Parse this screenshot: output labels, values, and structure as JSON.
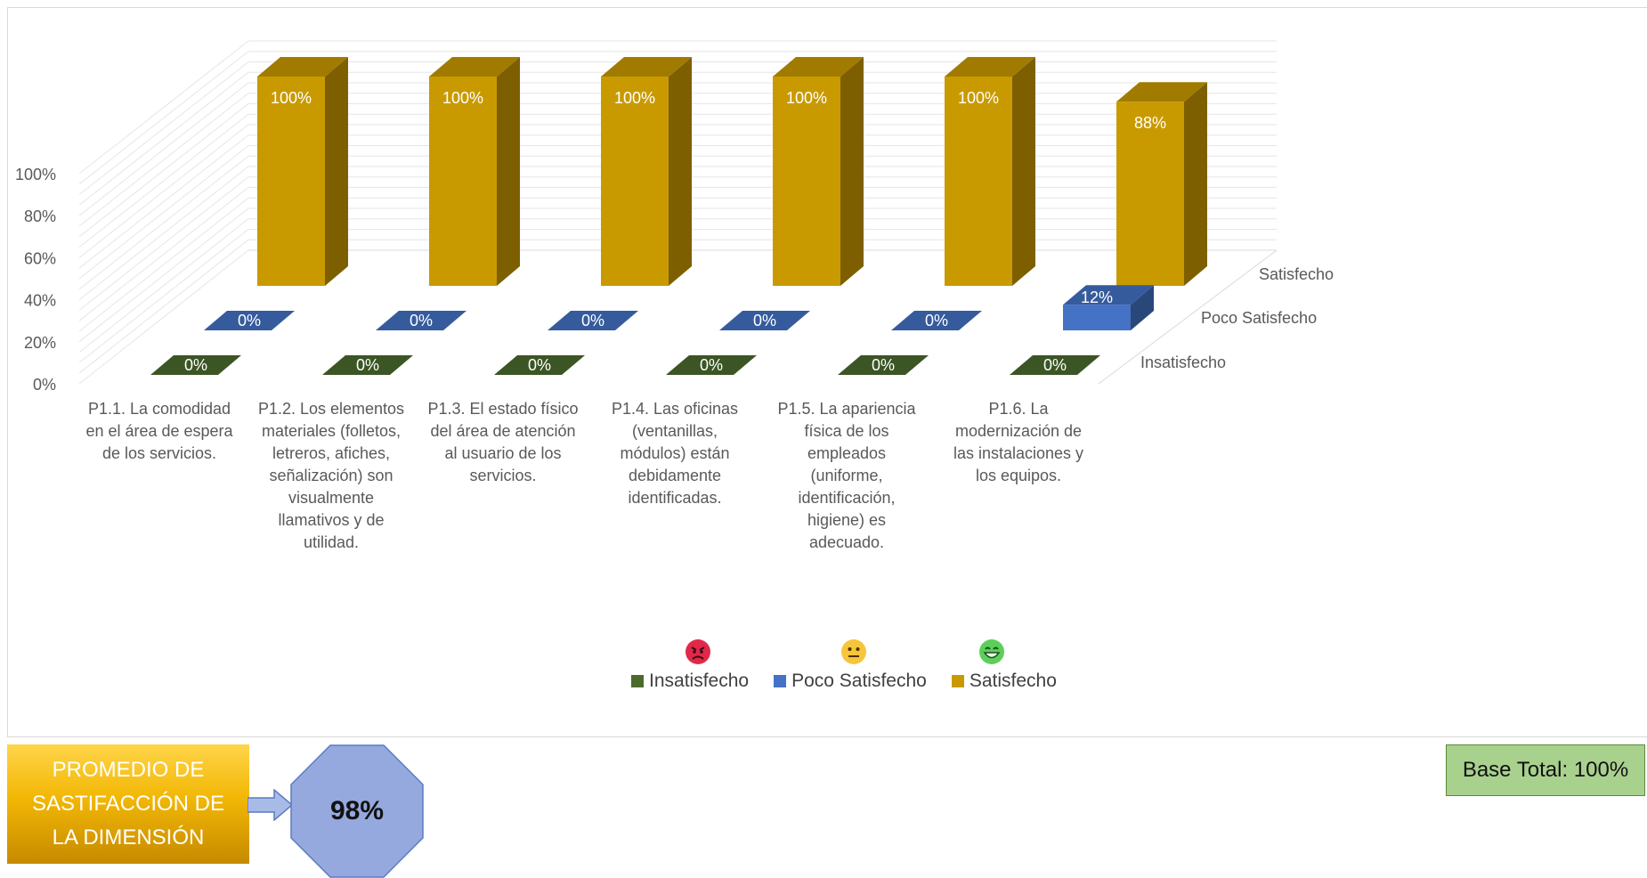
{
  "chart_data": {
    "type": "bar",
    "subtype": "3d-column",
    "categories": [
      "P1.1. La comodidad en el área de espera de los servicios.",
      "P1.2. Los elementos materiales (folletos, letreros, afiches, señalización) son visualmente llamativos y de utilidad.",
      "P1.3. El estado físico del área de atención al usuario de los servicios.",
      "P1.4. Las oficinas (ventanillas, módulos) están debidamente identificadas.",
      "P1.5. La apariencia física de los empleados (uniforme, identificación, higiene) es adecuado.",
      "P1.6. La modernización de las instalaciones y los equipos."
    ],
    "category_lines": [
      [
        "P1.1. La comodidad",
        "en el área de espera",
        "de los servicios."
      ],
      [
        "P1.2. Los elementos",
        "materiales (folletos,",
        "letreros, afiches,",
        "señalización) son",
        "visualmente",
        "llamativos y de",
        "utilidad."
      ],
      [
        "P1.3. El estado físico",
        "del área de atención",
        "al usuario de los",
        "servicios."
      ],
      [
        "P1.4. Las oficinas",
        "(ventanillas,",
        "módulos) están",
        "debidamente",
        "identificadas."
      ],
      [
        "P1.5. La apariencia",
        "física de los",
        "empleados",
        "(uniforme,",
        "identificación,",
        "higiene) es",
        "adecuado."
      ],
      [
        "P1.6. La",
        "modernización de",
        "las instalaciones y",
        "los equipos."
      ]
    ],
    "series": [
      {
        "name": "Insatisfecho",
        "values": [
          0,
          0,
          0,
          0,
          0,
          0
        ],
        "labels": [
          "0%",
          "0%",
          "0%",
          "0%",
          "0%",
          "0%"
        ],
        "color": "#4a6a2e"
      },
      {
        "name": "Poco Satisfecho",
        "values": [
          0,
          0,
          0,
          0,
          0,
          12
        ],
        "labels": [
          "0%",
          "0%",
          "0%",
          "0%",
          "0%",
          "12%"
        ],
        "color": "#4472c4"
      },
      {
        "name": "Satisfecho",
        "values": [
          100,
          100,
          100,
          100,
          100,
          88
        ],
        "labels": [
          "100%",
          "100%",
          "100%",
          "100%",
          "100%",
          "88%"
        ],
        "color": "#c99a00"
      }
    ],
    "yticks": [
      "0%",
      "20%",
      "40%",
      "60%",
      "80%",
      "100%"
    ],
    "ylim": [
      0,
      100
    ],
    "legend_position": "bottom",
    "grid": true
  },
  "legend": {
    "items": [
      {
        "label": "Insatisfecho",
        "color": "#4a6a2e",
        "face": "angry-face-icon",
        "face_color": "#e0294a"
      },
      {
        "label": "Poco Satisfecho",
        "color": "#4472c4",
        "face": "neutral-face-icon",
        "face_color": "#f7c53b"
      },
      {
        "label": "Satisfecho",
        "color": "#c99a00",
        "face": "grinning-face-icon",
        "face_color": "#5ccf5a"
      }
    ]
  },
  "summary": {
    "average_label": "PROMEDIO DE\nSASTIFACCIÓN DE\nLA DIMENSIÓN",
    "average_value": "98%",
    "base_total": "Base Total: 100%"
  }
}
